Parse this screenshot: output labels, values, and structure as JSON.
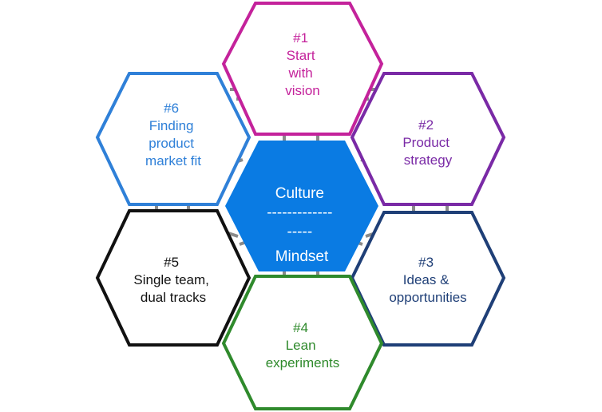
{
  "center": {
    "lines": [
      "Culture",
      "-------------",
      "-----",
      "Mindset"
    ],
    "fill": "#0a7be3",
    "text_color": "#ffffff"
  },
  "hexes": [
    {
      "id": "vision",
      "lines": [
        "#1",
        "Start",
        "with",
        "vision"
      ],
      "color": "#c4229b"
    },
    {
      "id": "strategy",
      "lines": [
        "#2",
        "Product",
        "strategy"
      ],
      "color": "#7a2aa6"
    },
    {
      "id": "ideas",
      "lines": [
        "#3",
        "Ideas &",
        "opportunities"
      ],
      "color": "#1f3f77"
    },
    {
      "id": "experiments",
      "lines": [
        "#4",
        "Lean",
        "experiments"
      ],
      "color": "#2f8a2c"
    },
    {
      "id": "tracks",
      "lines": [
        "#5",
        "Single team,",
        "dual tracks"
      ],
      "color": "#111111"
    },
    {
      "id": "fit",
      "lines": [
        "#6",
        "Finding",
        "product",
        "market fit"
      ],
      "color": "#2f80d8"
    }
  ],
  "connector_color": "#8a8a8a"
}
